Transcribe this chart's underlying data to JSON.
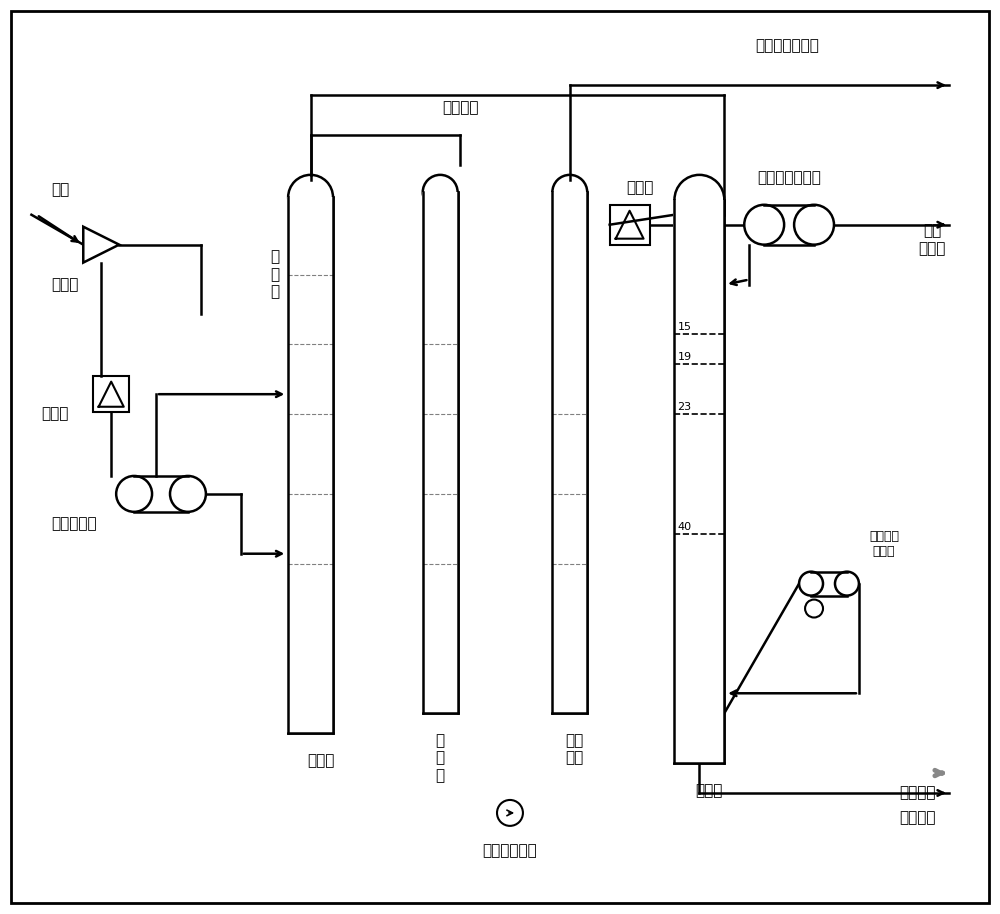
{
  "bg_color": "#ffffff",
  "border_color": "#000000",
  "line_color": "#555555",
  "gray_line": "#888888",
  "fig_width": 10.0,
  "fig_height": 9.14,
  "labels": {
    "fuqi": "富气",
    "qiyaji": "气压机",
    "lenquqi_left": "冷却器",
    "youqi_fenliji": "油气分离器",
    "cu_qiyou": "粗\n汽\n油",
    "xishota": "吸收塔",
    "jiexi_ta": "解\n析\n塔",
    "zaishota": "再吸\n收塔",
    "pinxishouyou": "贫吸收油",
    "dingqi_zhipin": "干气至产品精制",
    "lenquqi_right": "冷却器",
    "wending_ta_dinghuiliu": "稳定塔顶回流罐",
    "yihua_shiyouqi": "液化\n石油气",
    "wending_ta": "稳定塔",
    "wending_ta_di_chongfei": "稳定塔底\n重沸器",
    "wending_qiyou": "稳定汽油",
    "fu_xishouyou": "富吸收油",
    "wending_ta_jinliao_beng": "稳定塔进料泵",
    "tray_15": "15",
    "tray_19": "19",
    "tray_23": "23",
    "tray_40": "40"
  }
}
